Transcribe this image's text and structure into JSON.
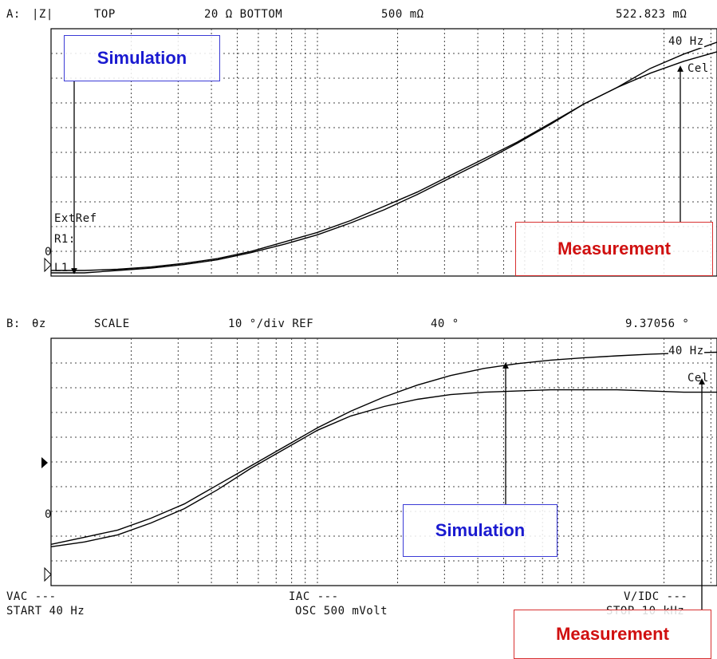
{
  "panel_a": {
    "label": "A:",
    "param": "|Z|",
    "top_label": "TOP",
    "top_value": "20 Ω BOTTOM",
    "bottom_value": "500 mΩ",
    "marker_value": "522.823 mΩ",
    "marker_freq": "40 Hz",
    "marker_name": "Cel",
    "ext_ref": "ExtRef",
    "r1": "R1:",
    "zero": "0",
    "l1": "L1"
  },
  "panel_b": {
    "label": "B:",
    "param": "θz",
    "scale_label": "SCALE",
    "scale_value": "10 °/div REF",
    "ref_value": "40 °",
    "marker_value": "9.37056 °",
    "marker_freq": "40 Hz",
    "marker_name": "Cel",
    "zero": "0"
  },
  "footer": {
    "vac": "VAC ---",
    "start": "START 40 Hz",
    "iac": "IAC ---",
    "osc": "OSC 500 mVolt",
    "vidc": "V/IDC ---",
    "stop": "STOP 10 kHz"
  },
  "annotations": {
    "simulation": "Simulation",
    "measurement": "Measurement",
    "sim_color": "#1a1ad0",
    "meas_color": "#d01010"
  },
  "chart_data": [
    {
      "type": "line",
      "title": "|Z|",
      "x_range": [
        40,
        10000
      ],
      "x_unit": "Hz",
      "ylim_normalized": [
        0,
        1
      ],
      "grid": true,
      "series": [
        {
          "name": "Simulation",
          "x": [
            0,
            0.05,
            0.1,
            0.15,
            0.2,
            0.25,
            0.3,
            0.35,
            0.4,
            0.45,
            0.5,
            0.55,
            0.6,
            0.65,
            0.7,
            0.75,
            0.8,
            0.85,
            0.9,
            0.95,
            1.0
          ],
          "y": [
            0.01,
            0.01,
            0.015,
            0.025,
            0.04,
            0.06,
            0.09,
            0.13,
            0.17,
            0.22,
            0.28,
            0.34,
            0.41,
            0.48,
            0.55,
            0.63,
            0.71,
            0.78,
            0.86,
            0.92,
            0.97
          ]
        },
        {
          "name": "Measurement",
          "x": [
            0,
            0.05,
            0.1,
            0.15,
            0.2,
            0.25,
            0.3,
            0.35,
            0.4,
            0.45,
            0.5,
            0.55,
            0.6,
            0.65,
            0.7,
            0.75,
            0.8,
            0.85,
            0.9,
            0.95,
            1.0
          ],
          "y": [
            0.0,
            0.0,
            0.01,
            0.02,
            0.035,
            0.055,
            0.085,
            0.12,
            0.16,
            0.21,
            0.265,
            0.33,
            0.4,
            0.47,
            0.545,
            0.625,
            0.71,
            0.78,
            0.84,
            0.89,
            0.93
          ]
        }
      ]
    },
    {
      "type": "line",
      "title": "θz",
      "x_range": [
        40,
        10000
      ],
      "x_unit": "Hz",
      "ylim_normalized": [
        0,
        1
      ],
      "grid": true,
      "series": [
        {
          "name": "Simulation",
          "x": [
            0,
            0.05,
            0.1,
            0.15,
            0.2,
            0.25,
            0.3,
            0.35,
            0.4,
            0.45,
            0.5,
            0.55,
            0.6,
            0.65,
            0.7,
            0.75,
            0.8,
            0.85,
            0.9,
            0.95,
            1.0
          ],
          "y": [
            0.16,
            0.19,
            0.22,
            0.27,
            0.33,
            0.41,
            0.49,
            0.57,
            0.65,
            0.72,
            0.78,
            0.83,
            0.87,
            0.9,
            0.92,
            0.935,
            0.945,
            0.953,
            0.96,
            0.965,
            0.968
          ]
        },
        {
          "name": "Measurement",
          "x": [
            0,
            0.05,
            0.1,
            0.15,
            0.2,
            0.25,
            0.3,
            0.35,
            0.4,
            0.45,
            0.5,
            0.55,
            0.6,
            0.65,
            0.7,
            0.75,
            0.8,
            0.85,
            0.9,
            0.95,
            1.0
          ],
          "y": [
            0.15,
            0.17,
            0.2,
            0.25,
            0.31,
            0.39,
            0.48,
            0.56,
            0.64,
            0.7,
            0.74,
            0.77,
            0.79,
            0.8,
            0.805,
            0.81,
            0.81,
            0.81,
            0.805,
            0.8,
            0.8
          ]
        }
      ]
    }
  ]
}
